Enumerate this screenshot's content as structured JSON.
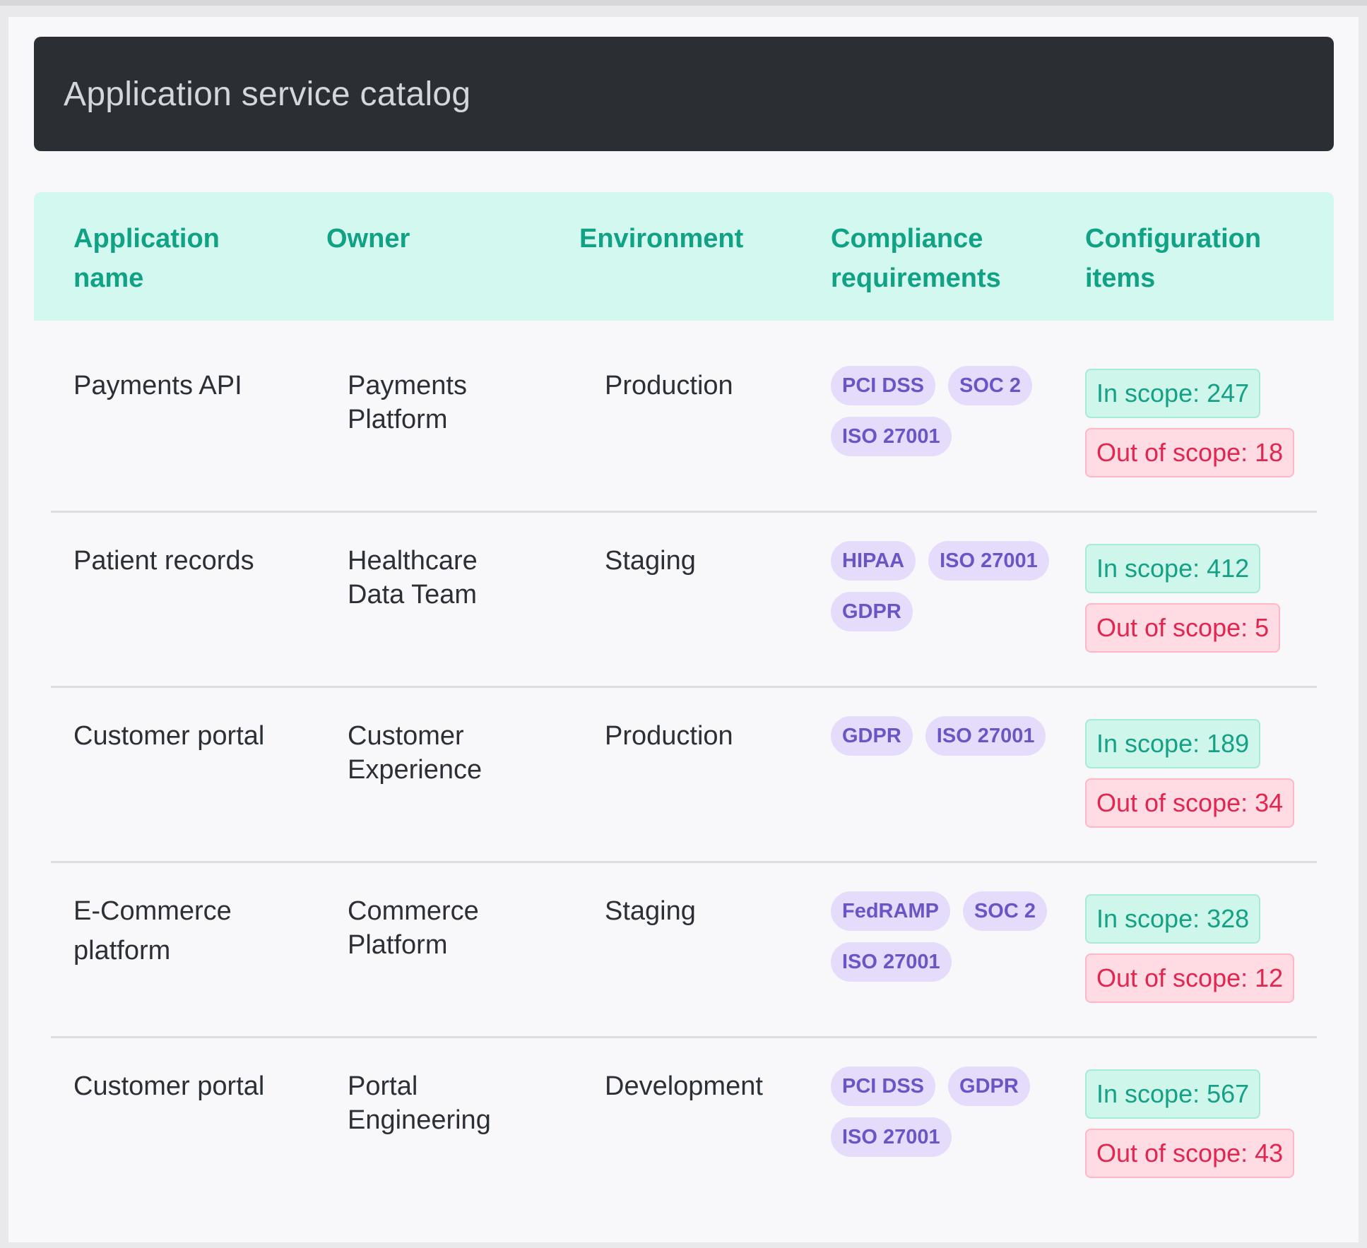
{
  "header": {
    "title": "Application service catalog"
  },
  "columns": {
    "app_line1": "Application",
    "app_line2": "name",
    "owner": "Owner",
    "env": "Environment",
    "comp_line1": "Compliance",
    "comp_line2": "requirements",
    "conf_line1": "Configuration",
    "conf_line2": "items"
  },
  "rows": [
    {
      "app_line1": "Payments API",
      "app_line2": "",
      "owner_line1": "Payments",
      "owner_line2": "Platform",
      "environment": "Production",
      "compliance": [
        "PCI DSS",
        "SOC 2",
        "ISO 27001"
      ],
      "in_scope": "In scope: 247",
      "out_scope": "Out of scope: 18"
    },
    {
      "app_line1": "Patient records",
      "app_line2": "",
      "owner_line1": "Healthcare",
      "owner_line2": "Data Team",
      "environment": "Staging",
      "compliance": [
        "HIPAA",
        "ISO 27001",
        "GDPR"
      ],
      "in_scope": "In scope: 412",
      "out_scope": "Out of scope: 5"
    },
    {
      "app_line1": "Customer portal",
      "app_line2": "",
      "owner_line1": "Customer",
      "owner_line2": "Experience",
      "environment": "Production",
      "compliance": [
        "GDPR",
        "ISO 27001"
      ],
      "in_scope": "In scope: 189",
      "out_scope": "Out of scope: 34"
    },
    {
      "app_line1": "E-Commerce",
      "app_line2": "platform",
      "owner_line1": "Commerce",
      "owner_line2": "Platform",
      "environment": "Staging",
      "compliance": [
        "FedRAMP",
        "SOC 2",
        "ISO 27001"
      ],
      "in_scope": "In scope: 328",
      "out_scope": "Out of scope: 12"
    },
    {
      "app_line1": "Customer portal",
      "app_line2": "",
      "owner_line1": "Portal",
      "owner_line2": "Engineering",
      "environment": "Development",
      "compliance": [
        "PCI DSS",
        "GDPR",
        "ISO 27001"
      ],
      "in_scope": "In scope: 567",
      "out_scope": "Out of scope: 43"
    }
  ]
}
